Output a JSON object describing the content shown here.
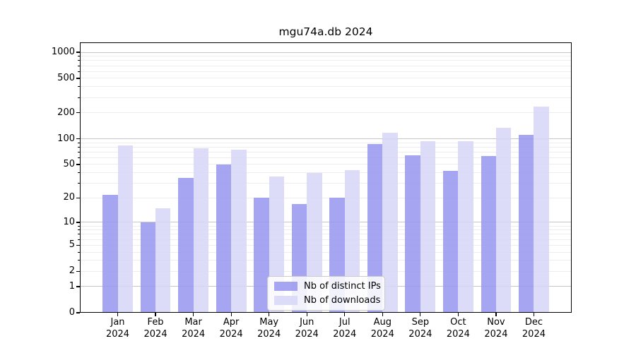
{
  "page": {
    "title": "mgu74a.db 2024"
  },
  "chart_data": {
    "type": "bar",
    "title": "mgu74a.db 2024",
    "y_scale": "log1p",
    "ylim": [
      0,
      1300
    ],
    "y_ticks": [
      0,
      1,
      2,
      5,
      10,
      20,
      50,
      100,
      200,
      500,
      1000
    ],
    "categories": [
      "Jan",
      "Feb",
      "Mar",
      "Apr",
      "May",
      "Jun",
      "Jul",
      "Aug",
      "Sep",
      "Oct",
      "Nov",
      "Dec"
    ],
    "x_tick_line2": "2024",
    "series": [
      {
        "name": "Nb of distinct IPs",
        "color": "#9595f0",
        "values": [
          22,
          10,
          35,
          50,
          20,
          17,
          20,
          86,
          64,
          42,
          63,
          111
        ]
      },
      {
        "name": "Nb of downloads",
        "color": "#d6d6f8",
        "values": [
          83,
          15,
          77,
          75,
          36,
          40,
          43,
          118,
          93,
          93,
          134,
          235
        ]
      }
    ],
    "legend_position": "lower center",
    "grid": true,
    "colors": {
      "grid_major": "#c6c6c6",
      "grid_minor": "#ededed",
      "axis": "#000000",
      "text": "#000000",
      "background": "#ffffff"
    }
  }
}
